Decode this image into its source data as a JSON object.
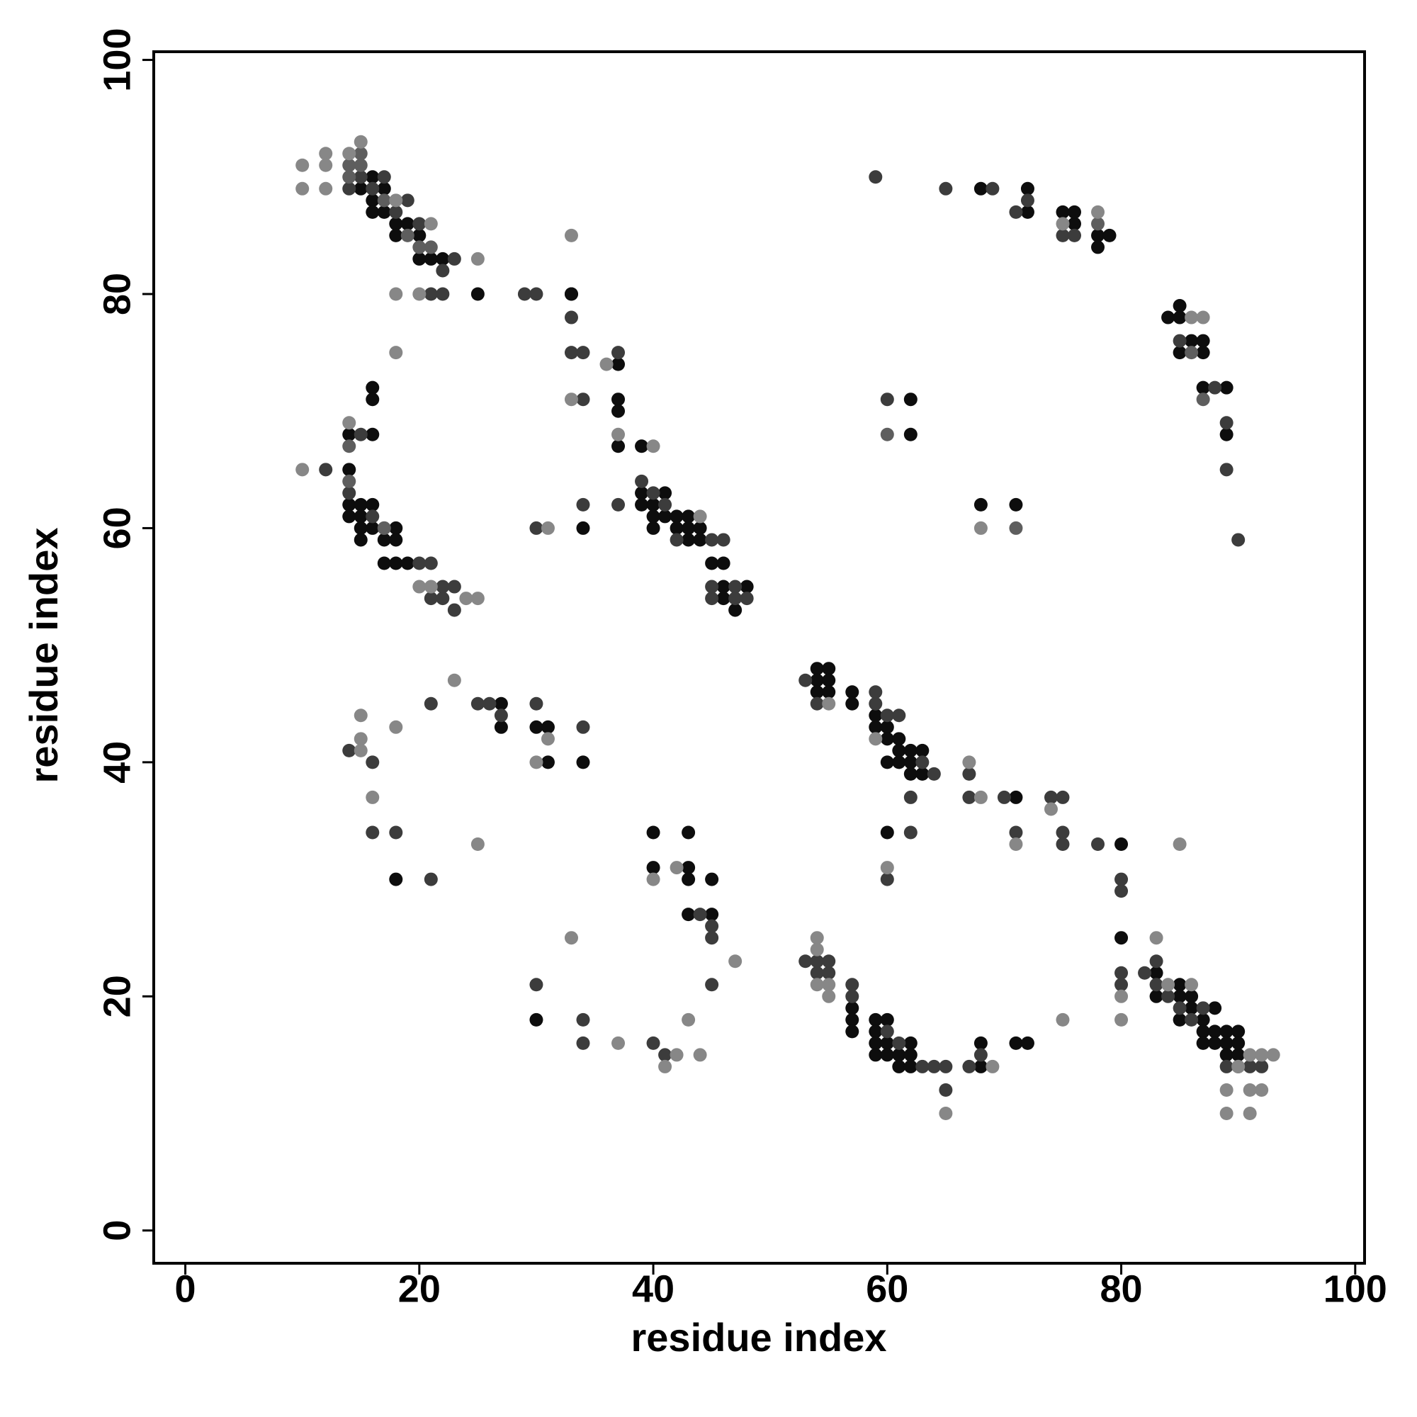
{
  "chart_data": {
    "type": "scatter",
    "x_label": "residue index",
    "y_label": "residue index",
    "xlim": [
      -2.7,
      100.8
    ],
    "ylim": [
      -2.8,
      100.7
    ],
    "xticks": [
      0,
      20,
      40,
      60,
      80,
      100
    ],
    "yticks": [
      0,
      20,
      40,
      60,
      80,
      100
    ],
    "grid": false,
    "series": [
      {
        "color": "#0d0d0d",
        "x": [
          15,
          16,
          16,
          16,
          17,
          17,
          18,
          18,
          19,
          20,
          20,
          21,
          22,
          25,
          33,
          16,
          16,
          14,
          16,
          14,
          14,
          14,
          15,
          15,
          15,
          15,
          16,
          16,
          17,
          18,
          18,
          17,
          18,
          19,
          33,
          37,
          37,
          37,
          37,
          34,
          39,
          39,
          39,
          40,
          40,
          40,
          41,
          41,
          42,
          42,
          43,
          43,
          43,
          44,
          44,
          45,
          46,
          46,
          46,
          48,
          47,
          18,
          27,
          27,
          30,
          31,
          31,
          34,
          40,
          43,
          40,
          43,
          43,
          45,
          43,
          45,
          30,
          54,
          55,
          54,
          55,
          54,
          55,
          57,
          57,
          59,
          59,
          60,
          60,
          61,
          61,
          62,
          60,
          61,
          62,
          63,
          62,
          63,
          60,
          71,
          80,
          80,
          57,
          57,
          57,
          59,
          59,
          59,
          59,
          60,
          60,
          60,
          61,
          61,
          62,
          62,
          62,
          68,
          68,
          71,
          72,
          83,
          83,
          85,
          85,
          85,
          86,
          86,
          87,
          87,
          87,
          88,
          88,
          88,
          89,
          89,
          89,
          90,
          90,
          90,
          68,
          72,
          72,
          76,
          75,
          76,
          78,
          79,
          78,
          84,
          85,
          85,
          86,
          87,
          85,
          87,
          87,
          89,
          89,
          62,
          62,
          68,
          71
        ],
        "values": [
          89,
          90,
          88,
          87,
          89,
          87,
          86,
          85,
          86,
          85,
          83,
          83,
          83,
          80,
          80,
          72,
          71,
          68,
          68,
          65,
          62,
          61,
          62,
          61,
          60,
          59,
          62,
          60,
          59,
          60,
          59,
          57,
          57,
          57,
          80,
          74,
          71,
          70,
          67,
          60,
          67,
          63,
          62,
          62,
          61,
          60,
          63,
          61,
          61,
          60,
          61,
          60,
          59,
          60,
          59,
          57,
          57,
          55,
          54,
          55,
          53,
          30,
          45,
          43,
          43,
          43,
          40,
          40,
          34,
          34,
          31,
          31,
          30,
          30,
          27,
          27,
          18,
          48,
          48,
          47,
          47,
          46,
          46,
          46,
          45,
          44,
          43,
          43,
          42,
          42,
          41,
          41,
          40,
          40,
          40,
          41,
          39,
          39,
          34,
          37,
          33,
          25,
          19,
          18,
          17,
          18,
          17,
          16,
          15,
          18,
          16,
          15,
          15,
          14,
          16,
          15,
          14,
          16,
          14,
          16,
          16,
          22,
          20,
          21,
          20,
          18,
          20,
          19,
          18,
          17,
          16,
          19,
          17,
          16,
          17,
          16,
          15,
          17,
          15,
          16,
          89,
          89,
          87,
          86,
          87,
          87,
          85,
          85,
          84,
          78,
          79,
          78,
          76,
          76,
          75,
          75,
          72,
          72,
          68,
          71,
          68,
          62,
          62
        ]
      },
      {
        "color": "#3c3c3c",
        "x": [
          14,
          15,
          16,
          17,
          18,
          19,
          20,
          22,
          23,
          21,
          22,
          29,
          30,
          12,
          15,
          14,
          16,
          17,
          20,
          21,
          22,
          23,
          22,
          23,
          21,
          33,
          33,
          34,
          37,
          34,
          37,
          34,
          30,
          39,
          40,
          41,
          42,
          45,
          46,
          45,
          47,
          45,
          47,
          48,
          14,
          16,
          16,
          18,
          21,
          25,
          26,
          27,
          34,
          30,
          21,
          44,
          45,
          45,
          45,
          30,
          34,
          34,
          40,
          41,
          53,
          54,
          59,
          60,
          61,
          59,
          63,
          64,
          67,
          67,
          70,
          62,
          62,
          71,
          75,
          74,
          60,
          75,
          75,
          78,
          80,
          80,
          53,
          54,
          55,
          54,
          55,
          57,
          57,
          60,
          61,
          63,
          64,
          65,
          65,
          67,
          68,
          80,
          80,
          82,
          83,
          83,
          84,
          85,
          86,
          87,
          89,
          90,
          91,
          92,
          59,
          65,
          69,
          71,
          72,
          75,
          76,
          88,
          85,
          89,
          89,
          90,
          60
        ],
        "values": [
          89,
          90,
          89,
          90,
          87,
          88,
          86,
          82,
          83,
          80,
          80,
          80,
          80,
          65,
          68,
          63,
          61,
          60,
          57,
          57,
          55,
          55,
          54,
          53,
          54,
          78,
          75,
          75,
          75,
          71,
          62,
          62,
          60,
          64,
          63,
          62,
          59,
          59,
          59,
          55,
          55,
          54,
          54,
          54,
          41,
          40,
          34,
          34,
          45,
          45,
          45,
          44,
          43,
          45,
          30,
          27,
          26,
          25,
          21,
          21,
          18,
          16,
          16,
          15,
          47,
          45,
          46,
          44,
          44,
          45,
          40,
          39,
          39,
          37,
          37,
          37,
          34,
          34,
          37,
          37,
          30,
          34,
          33,
          33,
          30,
          29,
          23,
          23,
          23,
          22,
          22,
          21,
          20,
          17,
          16,
          14,
          14,
          14,
          12,
          14,
          15,
          22,
          21,
          22,
          23,
          21,
          20,
          19,
          18,
          19,
          14,
          14,
          14,
          14,
          90,
          89,
          89,
          87,
          88,
          85,
          85,
          72,
          76,
          69,
          65,
          59,
          71
        ]
      },
      {
        "color": "#5e5e5e",
        "x": [
          14,
          15,
          15,
          14,
          19,
          21,
          20,
          17,
          14,
          14,
          17,
          78,
          86,
          87,
          60,
          71
        ],
        "values": [
          91,
          92,
          91,
          90,
          85,
          84,
          84,
          88,
          67,
          64,
          60,
          86,
          75,
          71,
          68,
          60
        ]
      },
      {
        "color": "#878787",
        "x": [
          10,
          10,
          12,
          12,
          12,
          15,
          14,
          18,
          21,
          25,
          18,
          20,
          18,
          10,
          14,
          20,
          21,
          24,
          25,
          33,
          33,
          36,
          37,
          40,
          31,
          44,
          23,
          15,
          15,
          15,
          18,
          16,
          25,
          31,
          30,
          40,
          42,
          33,
          47,
          43,
          37,
          41,
          42,
          44,
          55,
          59,
          67,
          68,
          74,
          71,
          60,
          85,
          75,
          80,
          83,
          54,
          54,
          55,
          55,
          54,
          69,
          65,
          80,
          84,
          86,
          90,
          91,
          92,
          93,
          89,
          92,
          89,
          91,
          91,
          75,
          78,
          86,
          87,
          68
        ],
        "values": [
          91,
          89,
          92,
          91,
          89,
          93,
          92,
          88,
          86,
          83,
          80,
          80,
          75,
          65,
          69,
          55,
          55,
          54,
          54,
          85,
          71,
          74,
          68,
          67,
          60,
          61,
          47,
          44,
          42,
          41,
          43,
          37,
          33,
          42,
          40,
          30,
          31,
          25,
          23,
          18,
          16,
          14,
          15,
          15,
          45,
          42,
          40,
          37,
          36,
          33,
          31,
          33,
          18,
          18,
          25,
          25,
          24,
          21,
          20,
          21,
          14,
          10,
          20,
          21,
          21,
          14,
          15,
          15,
          15,
          12,
          12,
          10,
          10,
          12,
          86,
          87,
          78,
          78,
          60
        ]
      }
    ]
  }
}
